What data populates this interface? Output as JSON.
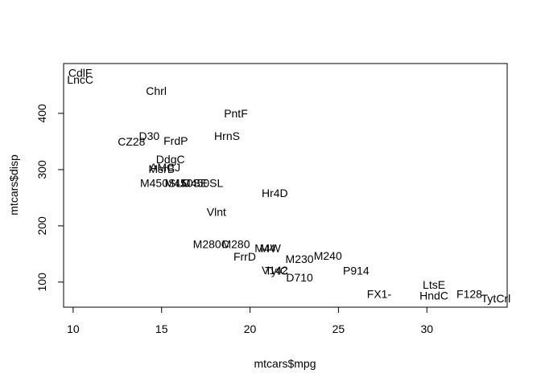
{
  "chart_data": {
    "type": "scatter",
    "xlabel": "mtcars$mpg",
    "ylabel": "mtcars$disp",
    "xlim": [
      9.46,
      34.54
    ],
    "ylim": [
      55.4,
      488.6
    ],
    "x_ticks": [
      10,
      15,
      20,
      25,
      30
    ],
    "y_ticks": [
      100,
      200,
      300,
      400
    ],
    "grid": false,
    "points": [
      {
        "label": "M4",
        "x": 21.0,
        "y": 160.0
      },
      {
        "label": "M4W",
        "x": 21.0,
        "y": 160.0
      },
      {
        "label": "D710",
        "x": 22.8,
        "y": 108.0
      },
      {
        "label": "Hr4D",
        "x": 21.4,
        "y": 258.0
      },
      {
        "label": "HrnS",
        "x": 18.7,
        "y": 360.0
      },
      {
        "label": "Vlnt",
        "x": 18.1,
        "y": 225.0
      },
      {
        "label": "D30",
        "x": 14.3,
        "y": 360.0
      },
      {
        "label": "M240",
        "x": 24.4,
        "y": 146.7
      },
      {
        "label": "M230",
        "x": 22.8,
        "y": 140.8
      },
      {
        "label": "M280",
        "x": 19.2,
        "y": 167.6
      },
      {
        "label": "M280C",
        "x": 17.8,
        "y": 167.6
      },
      {
        "label": "M450SE",
        "x": 16.4,
        "y": 275.8
      },
      {
        "label": "M450SL",
        "x": 17.3,
        "y": 275.8
      },
      {
        "label": "M450SLC",
        "x": 15.2,
        "y": 275.8
      },
      {
        "label": "CdlF",
        "x": 10.4,
        "y": 472.0
      },
      {
        "label": "LncC",
        "x": 10.4,
        "y": 460.0
      },
      {
        "label": "Chrl",
        "x": 14.7,
        "y": 440.0
      },
      {
        "label": "F128",
        "x": 32.4,
        "y": 78.7
      },
      {
        "label": "HndC",
        "x": 30.4,
        "y": 75.7
      },
      {
        "label": "TytCrl",
        "x": 33.9,
        "y": 71.1
      },
      {
        "label": "TytC",
        "x": 21.5,
        "y": 120.1
      },
      {
        "label": "DdgC",
        "x": 15.5,
        "y": 318.0
      },
      {
        "label": "AMCJ",
        "x": 15.2,
        "y": 304.0
      },
      {
        "label": "CZ28",
        "x": 13.3,
        "y": 350.0
      },
      {
        "label": "PntF",
        "x": 19.2,
        "y": 400.0
      },
      {
        "label": "FX1-",
        "x": 27.3,
        "y": 79.0
      },
      {
        "label": "P914",
        "x": 26.0,
        "y": 120.3
      },
      {
        "label": "LtsE",
        "x": 30.4,
        "y": 95.1
      },
      {
        "label": "FrdP",
        "x": 15.8,
        "y": 351.0
      },
      {
        "label": "FrrD",
        "x": 19.7,
        "y": 145.0
      },
      {
        "label": "MsrB",
        "x": 15.0,
        "y": 301.0
      },
      {
        "label": "V142",
        "x": 21.4,
        "y": 121.0
      }
    ]
  }
}
